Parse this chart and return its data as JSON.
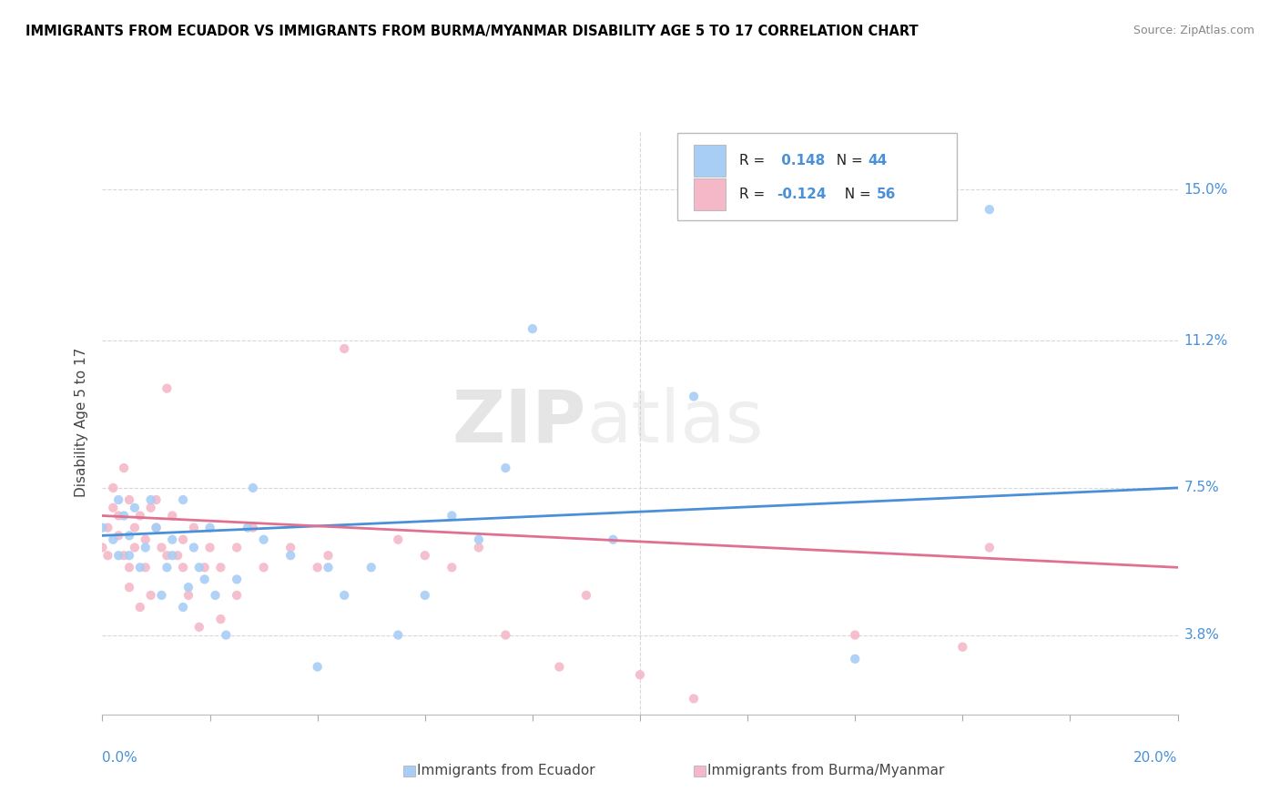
{
  "title": "IMMIGRANTS FROM ECUADOR VS IMMIGRANTS FROM BURMA/MYANMAR DISABILITY AGE 5 TO 17 CORRELATION CHART",
  "source": "Source: ZipAtlas.com",
  "ylabel": "Disability Age 5 to 17",
  "y_ticks": [
    0.038,
    0.075,
    0.112,
    0.15
  ],
  "y_tick_labels": [
    "3.8%",
    "7.5%",
    "11.2%",
    "15.0%"
  ],
  "x_range": [
    0.0,
    0.2
  ],
  "y_range": [
    0.018,
    0.165
  ],
  "legend_R1": "0.148",
  "legend_N1": "44",
  "legend_R2": "-0.124",
  "legend_N2": "56",
  "ecuador_scatter": [
    [
      0.0,
      0.065
    ],
    [
      0.002,
      0.062
    ],
    [
      0.003,
      0.072
    ],
    [
      0.003,
      0.058
    ],
    [
      0.004,
      0.068
    ],
    [
      0.005,
      0.063
    ],
    [
      0.005,
      0.058
    ],
    [
      0.006,
      0.07
    ],
    [
      0.007,
      0.055
    ],
    [
      0.008,
      0.06
    ],
    [
      0.009,
      0.072
    ],
    [
      0.01,
      0.065
    ],
    [
      0.011,
      0.048
    ],
    [
      0.012,
      0.055
    ],
    [
      0.013,
      0.062
    ],
    [
      0.013,
      0.058
    ],
    [
      0.015,
      0.072
    ],
    [
      0.015,
      0.045
    ],
    [
      0.016,
      0.05
    ],
    [
      0.017,
      0.06
    ],
    [
      0.018,
      0.055
    ],
    [
      0.019,
      0.052
    ],
    [
      0.02,
      0.065
    ],
    [
      0.021,
      0.048
    ],
    [
      0.023,
      0.038
    ],
    [
      0.025,
      0.052
    ],
    [
      0.027,
      0.065
    ],
    [
      0.028,
      0.075
    ],
    [
      0.03,
      0.062
    ],
    [
      0.035,
      0.058
    ],
    [
      0.04,
      0.03
    ],
    [
      0.042,
      0.055
    ],
    [
      0.045,
      0.048
    ],
    [
      0.05,
      0.055
    ],
    [
      0.055,
      0.038
    ],
    [
      0.06,
      0.048
    ],
    [
      0.065,
      0.068
    ],
    [
      0.07,
      0.062
    ],
    [
      0.075,
      0.08
    ],
    [
      0.08,
      0.115
    ],
    [
      0.095,
      0.062
    ],
    [
      0.11,
      0.098
    ],
    [
      0.14,
      0.032
    ],
    [
      0.165,
      0.145
    ]
  ],
  "burma_scatter": [
    [
      0.0,
      0.06
    ],
    [
      0.001,
      0.065
    ],
    [
      0.001,
      0.058
    ],
    [
      0.002,
      0.07
    ],
    [
      0.002,
      0.075
    ],
    [
      0.003,
      0.068
    ],
    [
      0.003,
      0.063
    ],
    [
      0.004,
      0.058
    ],
    [
      0.004,
      0.08
    ],
    [
      0.005,
      0.072
    ],
    [
      0.005,
      0.055
    ],
    [
      0.005,
      0.05
    ],
    [
      0.006,
      0.065
    ],
    [
      0.006,
      0.06
    ],
    [
      0.007,
      0.068
    ],
    [
      0.007,
      0.045
    ],
    [
      0.008,
      0.062
    ],
    [
      0.008,
      0.055
    ],
    [
      0.009,
      0.07
    ],
    [
      0.009,
      0.048
    ],
    [
      0.01,
      0.072
    ],
    [
      0.01,
      0.065
    ],
    [
      0.011,
      0.06
    ],
    [
      0.012,
      0.058
    ],
    [
      0.012,
      0.1
    ],
    [
      0.013,
      0.068
    ],
    [
      0.014,
      0.058
    ],
    [
      0.015,
      0.062
    ],
    [
      0.015,
      0.055
    ],
    [
      0.016,
      0.048
    ],
    [
      0.017,
      0.065
    ],
    [
      0.018,
      0.04
    ],
    [
      0.019,
      0.055
    ],
    [
      0.02,
      0.06
    ],
    [
      0.022,
      0.055
    ],
    [
      0.022,
      0.042
    ],
    [
      0.025,
      0.06
    ],
    [
      0.025,
      0.048
    ],
    [
      0.028,
      0.065
    ],
    [
      0.03,
      0.055
    ],
    [
      0.035,
      0.06
    ],
    [
      0.04,
      0.055
    ],
    [
      0.042,
      0.058
    ],
    [
      0.045,
      0.11
    ],
    [
      0.055,
      0.062
    ],
    [
      0.06,
      0.058
    ],
    [
      0.065,
      0.055
    ],
    [
      0.07,
      0.06
    ],
    [
      0.075,
      0.038
    ],
    [
      0.085,
      0.03
    ],
    [
      0.09,
      0.048
    ],
    [
      0.1,
      0.028
    ],
    [
      0.11,
      0.022
    ],
    [
      0.14,
      0.038
    ],
    [
      0.16,
      0.035
    ],
    [
      0.165,
      0.06
    ]
  ],
  "ecuador_line_x": [
    0.0,
    0.2
  ],
  "ecuador_line_y": [
    0.063,
    0.075
  ],
  "burma_line_x": [
    0.0,
    0.2
  ],
  "burma_line_y": [
    0.068,
    0.055
  ],
  "watermark_zip": "ZIP",
  "watermark_atlas": "atlas",
  "ecuador_color": "#a8cef5",
  "burma_color": "#f5b8c8",
  "ecuador_line_color": "#4a90d9",
  "burma_line_color": "#e07090",
  "grid_color": "#d8d8d8",
  "tick_color": "#4a90d9",
  "label_color": "#444444",
  "source_color": "#888888",
  "legend_box_color": "#c8d8f0",
  "bottom_label_ecuador": "Immigrants from Ecuador",
  "bottom_label_burma": "Immigrants from Burma/Myanmar"
}
